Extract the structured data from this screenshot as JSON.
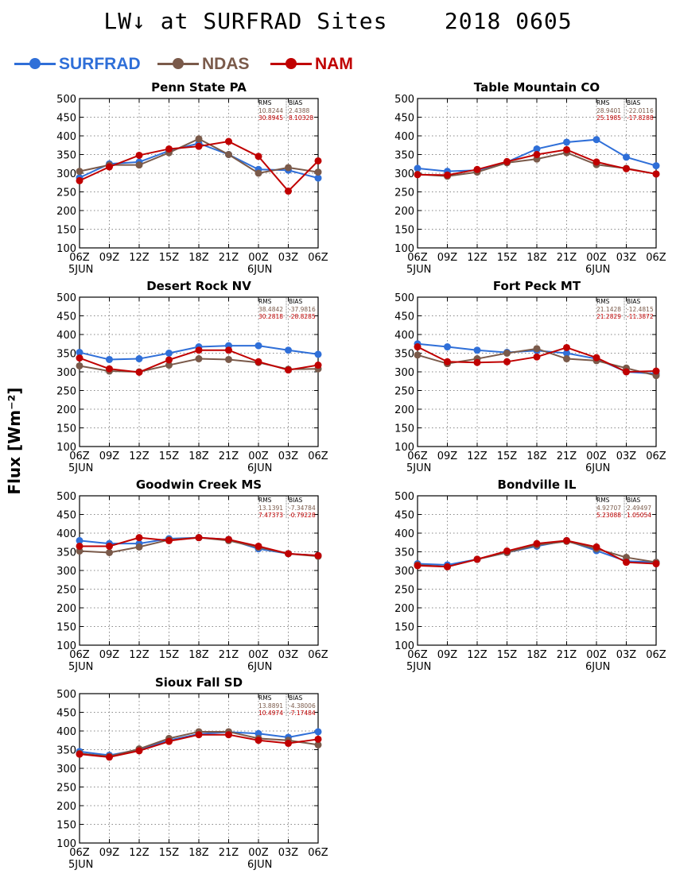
{
  "title": "LW↓ at SURFRAD Sites    2018 0605",
  "ylabel": "Flux [Wm⁻²]",
  "colors": {
    "SURFRAD": "#2f6fd8",
    "NDAS": "#7a5a4a",
    "NAM": "#c00000",
    "stats_header": "#000000",
    "stats_surfrad": "#7a5a4a",
    "stats_nam": "#c00000"
  },
  "legend": [
    {
      "name": "SURFRAD",
      "color": "#2f6fd8"
    },
    {
      "name": "NDAS",
      "color": "#7a5a4a"
    },
    {
      "name": "NAM",
      "color": "#c00000"
    }
  ],
  "chart_data": [
    {
      "type": "line",
      "title": "Penn State PA",
      "x": [
        "06Z",
        "09Z",
        "12Z",
        "15Z",
        "18Z",
        "21Z",
        "00Z",
        "03Z",
        "06Z"
      ],
      "date_labels": [
        "5JUN",
        "6JUN"
      ],
      "ylim": [
        100,
        500
      ],
      "yticks": [
        100,
        150,
        200,
        250,
        300,
        350,
        400,
        450,
        500
      ],
      "grid": true,
      "series": [
        {
          "name": "SURFRAD",
          "values": [
            288,
            325,
            330,
            360,
            380,
            350,
            310,
            308,
            287
          ]
        },
        {
          "name": "NDAS",
          "values": [
            305,
            322,
            322,
            355,
            392,
            350,
            300,
            315,
            303
          ]
        },
        {
          "name": "NAM",
          "values": [
            280,
            317,
            348,
            365,
            372,
            385,
            345,
            252,
            333
          ]
        }
      ],
      "stats": {
        "header": [
          "RMS",
          "BIAS"
        ],
        "rows": [
          [
            "10.8244",
            "2.4388"
          ],
          [
            "30.8945",
            "8.10328"
          ]
        ]
      }
    },
    {
      "type": "line",
      "title": "Table Mountain CO",
      "x": [
        "06Z",
        "09Z",
        "12Z",
        "15Z",
        "18Z",
        "21Z",
        "00Z",
        "03Z",
        "06Z"
      ],
      "date_labels": [
        "5JUN",
        "6JUN"
      ],
      "ylim": [
        100,
        500
      ],
      "yticks": [
        100,
        150,
        200,
        250,
        300,
        350,
        400,
        450,
        500
      ],
      "grid": true,
      "series": [
        {
          "name": "SURFRAD",
          "values": [
            313,
            305,
            308,
            330,
            365,
            383,
            390,
            343,
            320
          ]
        },
        {
          "name": "NDAS",
          "values": [
            297,
            292,
            303,
            328,
            338,
            355,
            323,
            313,
            298
          ]
        },
        {
          "name": "NAM",
          "values": [
            296,
            295,
            310,
            331,
            350,
            363,
            330,
            312,
            298
          ]
        }
      ],
      "stats": {
        "header": [
          "RMS",
          "BIAS"
        ],
        "rows": [
          [
            "28.9401",
            "-22.0116"
          ],
          [
            "25.1985",
            "-17.8288"
          ]
        ]
      }
    },
    {
      "type": "line",
      "title": "Desert Rock NV",
      "x": [
        "06Z",
        "09Z",
        "12Z",
        "15Z",
        "18Z",
        "21Z",
        "00Z",
        "03Z",
        "06Z"
      ],
      "date_labels": [
        "5JUN",
        "6JUN"
      ],
      "ylim": [
        100,
        500
      ],
      "yticks": [
        100,
        150,
        200,
        250,
        300,
        350,
        400,
        450,
        500
      ],
      "grid": true,
      "series": [
        {
          "name": "SURFRAD",
          "values": [
            352,
            333,
            335,
            350,
            367,
            370,
            370,
            358,
            347
          ]
        },
        {
          "name": "NDAS",
          "values": [
            316,
            302,
            300,
            318,
            335,
            333,
            325,
            307,
            308
          ]
        },
        {
          "name": "NAM",
          "values": [
            337,
            308,
            299,
            332,
            358,
            358,
            327,
            305,
            318
          ]
        }
      ],
      "stats": {
        "header": [
          "RMS",
          "BIAS"
        ],
        "rows": [
          [
            "38.4842",
            "-37.9816"
          ],
          [
            "30.2818",
            "-28.8285"
          ]
        ]
      }
    },
    {
      "type": "line",
      "title": "Fort Peck MT",
      "x": [
        "06Z",
        "09Z",
        "12Z",
        "15Z",
        "18Z",
        "21Z",
        "00Z",
        "03Z",
        "06Z"
      ],
      "date_labels": [
        "5JUN",
        "6JUN"
      ],
      "ylim": [
        100,
        500
      ],
      "yticks": [
        100,
        150,
        200,
        250,
        300,
        350,
        400,
        450,
        500
      ],
      "grid": true,
      "series": [
        {
          "name": "SURFRAD",
          "values": [
            375,
            367,
            358,
            352,
            357,
            350,
            335,
            300,
            295
          ]
        },
        {
          "name": "NDAS",
          "values": [
            345,
            322,
            335,
            350,
            362,
            335,
            330,
            310,
            290
          ]
        },
        {
          "name": "NAM",
          "values": [
            367,
            327,
            325,
            327,
            340,
            365,
            338,
            300,
            302
          ]
        }
      ],
      "stats": {
        "header": [
          "RMS",
          "BIAS"
        ],
        "rows": [
          [
            "21.1428",
            "-12.4815"
          ],
          [
            "21.2829",
            "-11.3872"
          ]
        ]
      }
    },
    {
      "type": "line",
      "title": "Goodwin Creek MS",
      "x": [
        "06Z",
        "09Z",
        "12Z",
        "15Z",
        "18Z",
        "21Z",
        "00Z",
        "03Z",
        "06Z"
      ],
      "date_labels": [
        "5JUN",
        "6JUN"
      ],
      "ylim": [
        100,
        500
      ],
      "yticks": [
        100,
        150,
        200,
        250,
        300,
        350,
        400,
        450,
        500
      ],
      "grid": true,
      "series": [
        {
          "name": "SURFRAD",
          "values": [
            380,
            372,
            372,
            385,
            388,
            383,
            358,
            345,
            340
          ]
        },
        {
          "name": "NDAS",
          "values": [
            352,
            348,
            363,
            382,
            388,
            380,
            362,
            345,
            338
          ]
        },
        {
          "name": "NAM",
          "values": [
            365,
            365,
            388,
            380,
            388,
            383,
            365,
            345,
            340
          ]
        }
      ],
      "stats": {
        "header": [
          "RMS",
          "BIAS"
        ],
        "rows": [
          [
            "13.1391",
            "-7.34784"
          ],
          [
            "7.47373",
            "-0.79228"
          ]
        ]
      }
    },
    {
      "type": "line",
      "title": "Bondville IL",
      "x": [
        "06Z",
        "09Z",
        "12Z",
        "15Z",
        "18Z",
        "21Z",
        "00Z",
        "03Z",
        "06Z"
      ],
      "date_labels": [
        "5JUN",
        "6JUN"
      ],
      "ylim": [
        100,
        500
      ],
      "yticks": [
        100,
        150,
        200,
        250,
        300,
        350,
        400,
        450,
        500
      ],
      "grid": true,
      "series": [
        {
          "name": "SURFRAD",
          "values": [
            318,
            315,
            330,
            348,
            365,
            380,
            353,
            325,
            322
          ]
        },
        {
          "name": "NDAS",
          "values": [
            315,
            310,
            330,
            348,
            368,
            378,
            358,
            335,
            322
          ]
        },
        {
          "name": "NAM",
          "values": [
            313,
            310,
            330,
            352,
            372,
            380,
            363,
            322,
            318
          ]
        }
      ],
      "stats": {
        "header": [
          "RMS",
          "BIAS"
        ],
        "rows": [
          [
            "4.92707",
            "2.49497"
          ],
          [
            "5.23088",
            "1.05054"
          ]
        ]
      }
    },
    {
      "type": "line",
      "title": "Sioux Fall SD",
      "x": [
        "06Z",
        "09Z",
        "12Z",
        "15Z",
        "18Z",
        "21Z",
        "00Z",
        "03Z",
        "06Z"
      ],
      "date_labels": [
        "5JUN",
        "6JUN"
      ],
      "ylim": [
        100,
        500
      ],
      "yticks": [
        100,
        150,
        200,
        250,
        300,
        350,
        400,
        450,
        500
      ],
      "grid": true,
      "series": [
        {
          "name": "SURFRAD",
          "values": [
            345,
            335,
            350,
            375,
            392,
            397,
            393,
            383,
            398
          ]
        },
        {
          "name": "NDAS",
          "values": [
            340,
            332,
            352,
            380,
            398,
            398,
            380,
            375,
            363
          ]
        },
        {
          "name": "NAM",
          "values": [
            338,
            330,
            347,
            372,
            390,
            390,
            375,
            367,
            378
          ]
        }
      ],
      "stats": {
        "header": [
          "RMS",
          "BIAS"
        ],
        "rows": [
          [
            "13.8891",
            "-4.38006"
          ],
          [
            "10.4974",
            "-7.17484"
          ]
        ]
      }
    }
  ]
}
